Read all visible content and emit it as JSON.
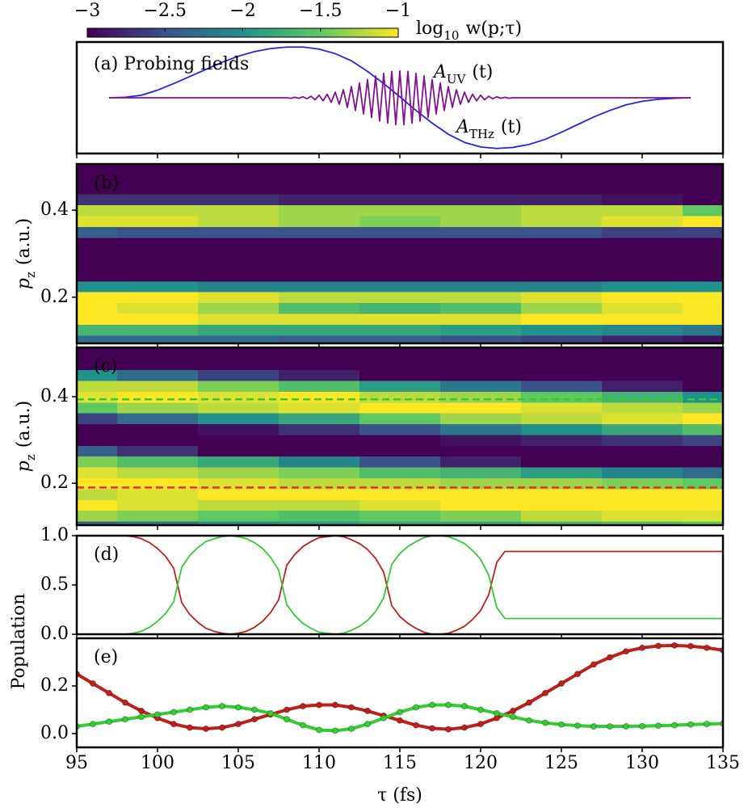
{
  "chart_data": [
    {
      "type": "line",
      "label": "(a) Probing fields",
      "xlim": [
        95,
        135
      ],
      "ylim": [
        -1.1,
        1.1
      ],
      "series": [
        {
          "name": {
            "text": "A",
            "sub": "THz",
            "suffix": "(t)"
          },
          "color": "#2222ee",
          "x": [
            97,
            98,
            99,
            100,
            101,
            102,
            103,
            104,
            105,
            106,
            107,
            108,
            109,
            110,
            111,
            112,
            113,
            114,
            115,
            116,
            117,
            118,
            119,
            120,
            121,
            122,
            123,
            124,
            125,
            126,
            127,
            128,
            129,
            130,
            131,
            132,
            133
          ],
          "values": [
            0,
            0.01,
            0.05,
            0.15,
            0.28,
            0.42,
            0.56,
            0.7,
            0.82,
            0.91,
            0.97,
            1,
            1,
            0.96,
            0.87,
            0.73,
            0.52,
            0.28,
            0.02,
            -0.25,
            -0.5,
            -0.72,
            -0.88,
            -0.97,
            -1,
            -0.98,
            -0.92,
            -0.82,
            -0.68,
            -0.53,
            -0.38,
            -0.25,
            -0.14,
            -0.07,
            -0.03,
            -0.01,
            0
          ]
        },
        {
          "name": {
            "text": "A",
            "sub": "UV",
            "suffix": "(t)"
          },
          "color": "#80128f",
          "x": [
            97,
            108,
            108.25,
            108.5,
            108.75,
            109,
            109.25,
            109.5,
            109.75,
            110,
            110.25,
            110.5,
            110.75,
            111,
            111.25,
            111.5,
            111.75,
            112,
            112.25,
            112.5,
            112.75,
            113,
            113.25,
            113.5,
            113.75,
            114,
            114.25,
            114.5,
            114.75,
            115,
            115.25,
            115.5,
            115.75,
            116,
            116.25,
            116.5,
            116.75,
            117,
            117.25,
            117.5,
            117.75,
            118,
            118.25,
            118.5,
            118.75,
            119,
            119.25,
            119.5,
            119.75,
            120,
            120.25,
            120.5,
            120.75,
            121,
            121.25,
            121.5,
            121.75,
            122,
            133
          ],
          "values": [
            0,
            0,
            -0.01,
            0.01,
            -0.01,
            0.02,
            -0.02,
            0.03,
            -0.04,
            0.05,
            -0.06,
            0.07,
            -0.09,
            0.11,
            -0.13,
            0.16,
            -0.19,
            0.22,
            -0.25,
            0.29,
            -0.32,
            0.36,
            -0.39,
            0.43,
            -0.46,
            0.48,
            -0.5,
            0.52,
            -0.53,
            0.53,
            -0.53,
            0.52,
            -0.5,
            0.48,
            -0.46,
            0.43,
            -0.39,
            0.36,
            -0.32,
            0.29,
            -0.25,
            0.22,
            -0.19,
            0.16,
            -0.13,
            0.11,
            -0.09,
            0.07,
            -0.06,
            0.05,
            -0.04,
            0.03,
            -0.02,
            0.02,
            -0.01,
            0.01,
            -0.01,
            0,
            0
          ]
        }
      ]
    },
    {
      "type": "heatmap",
      "label": "(b)",
      "ylabel": {
        "text": "p",
        "sub": "z",
        "suffix": "(a.u.)"
      },
      "xlim": [
        95,
        135
      ],
      "ylim": [
        0.094,
        0.506
      ],
      "yticks": [
        0.2,
        0.4
      ],
      "colorbar": {
        "label": {
          "text": "log",
          "sub": "10",
          "suffix": "w(p;τ)"
        },
        "clim": [
          -3,
          -1
        ],
        "ticks": [
          {
            "value": -3,
            "label": "−3"
          },
          {
            "value": -2.5,
            "label": "−2.5"
          },
          {
            "value": -2,
            "label": "−2"
          },
          {
            "value": -1.5,
            "label": "−1.5"
          },
          {
            "value": -1,
            "label": "−1"
          }
        ]
      },
      "x": [
        95,
        100,
        105,
        110,
        115,
        120,
        125,
        130,
        135
      ],
      "y": [
        0.1,
        0.125,
        0.15,
        0.175,
        0.2,
        0.225,
        0.25,
        0.275,
        0.3,
        0.325,
        0.35,
        0.375,
        0.4,
        0.425,
        0.45,
        0.475,
        0.5
      ],
      "z": [
        [
          -2.3,
          -2.3,
          -2.3,
          -2.4,
          -2.4,
          -2.5,
          -2.6,
          -2.8,
          -2.9
        ],
        [
          -1.7,
          -1.7,
          -1.8,
          -1.8,
          -1.8,
          -1.9,
          -2,
          -2.1,
          -2.2
        ],
        [
          -1,
          -1,
          -1.1,
          -1.1,
          -1.1,
          -1.1,
          -1,
          -1,
          -1
        ],
        [
          -1,
          -1.1,
          -1.3,
          -1.6,
          -1.7,
          -1.6,
          -1.3,
          -1.1,
          -1
        ],
        [
          -1,
          -1,
          -1.1,
          -1.2,
          -1.2,
          -1.2,
          -1.1,
          -1,
          -1
        ],
        [
          -2,
          -2,
          -2.1,
          -2.1,
          -2.1,
          -2.1,
          -2.1,
          -2,
          -2
        ],
        [
          -3,
          -3,
          -3,
          -3,
          -3,
          -3,
          -3,
          -3,
          -3
        ],
        [
          -3,
          -3,
          -3,
          -3,
          -3,
          -3,
          -3,
          -3,
          -3
        ],
        [
          -3,
          -3,
          -3,
          -3,
          -3,
          -3,
          -3,
          -3,
          -3
        ],
        [
          -3,
          -3,
          -3,
          -3,
          -3,
          -3,
          -3,
          -3,
          -3
        ],
        [
          -2.4,
          -2.5,
          -2.5,
          -2.5,
          -2.5,
          -2.5,
          -2.5,
          -2.6,
          -2.6
        ],
        [
          -1.1,
          -1.1,
          -1.2,
          -1.3,
          -1.4,
          -1.3,
          -1.2,
          -1.1,
          -1
        ],
        [
          -1.2,
          -1.2,
          -1.2,
          -1.3,
          -1.3,
          -1.3,
          -1.2,
          -1.2,
          -1.5
        ],
        [
          -2.7,
          -2.7,
          -2.7,
          -2.8,
          -2.8,
          -2.8,
          -2.8,
          -2.9,
          -3
        ],
        [
          -3,
          -3,
          -3,
          -3,
          -3,
          -3,
          -3,
          -3,
          -3
        ],
        [
          -3,
          -3,
          -3,
          -3,
          -3,
          -3,
          -3,
          -3,
          -3
        ],
        [
          -3,
          -3,
          -3,
          -3,
          -3,
          -3,
          -3,
          -3,
          -3
        ]
      ]
    },
    {
      "type": "heatmap",
      "label": "(c)",
      "ylabel": {
        "text": "p",
        "sub": "z",
        "suffix": "(a.u.)"
      },
      "xlim": [
        95,
        135
      ],
      "ylim": [
        0.103,
        0.514
      ],
      "yticks": [
        0.2,
        0.4
      ],
      "hlines": [
        {
          "value": 0.394,
          "color": "#33cc33"
        },
        {
          "value": 0.19,
          "color": "#e0302a"
        }
      ],
      "x": [
        95,
        100,
        105,
        110,
        115,
        120,
        125,
        130,
        135
      ],
      "y": [
        0.1,
        0.125,
        0.15,
        0.175,
        0.2,
        0.225,
        0.25,
        0.275,
        0.3,
        0.325,
        0.35,
        0.375,
        0.4,
        0.425,
        0.45,
        0.475,
        0.5
      ],
      "z": [
        [
          -2.4,
          -2.2,
          -2,
          -1.9,
          -1.8,
          -1.8,
          -1.7,
          -1.6,
          -1.5
        ],
        [
          -1.3,
          -1.4,
          -1.5,
          -1.6,
          -1.5,
          -1.4,
          -1.2,
          -1.1,
          -1.1
        ],
        [
          -1,
          -1.1,
          -1.2,
          -1.2,
          -1.1,
          -1,
          -1,
          -1,
          -1
        ],
        [
          -1.2,
          -1.1,
          -1,
          -1,
          -1,
          -1,
          -1,
          -1,
          -1
        ],
        [
          -1,
          -1,
          -1.1,
          -1.2,
          -1.2,
          -1.3,
          -1.3,
          -1.4,
          -1.5
        ],
        [
          -1.1,
          -1.2,
          -1.3,
          -1.4,
          -1.6,
          -1.7,
          -1.9,
          -2.1,
          -2.3
        ],
        [
          -1.4,
          -1.6,
          -1.8,
          -2.1,
          -2.5,
          -2.8,
          -3,
          -3,
          -3
        ],
        [
          -2.4,
          -2.7,
          -3,
          -3,
          -3,
          -3,
          -3,
          -3,
          -3
        ],
        [
          -3,
          -3,
          -3,
          -3,
          -3,
          -2.9,
          -2.8,
          -2.7,
          -2.6
        ],
        [
          -3,
          -3,
          -2.9,
          -2.7,
          -2.5,
          -2.2,
          -2,
          -1.8,
          -1.6
        ],
        [
          -2.6,
          -2.3,
          -2,
          -1.8,
          -1.5,
          -1.3,
          -1.2,
          -1.1,
          -1
        ],
        [
          -1.5,
          -1.3,
          -1.2,
          -1.1,
          -1,
          -1,
          -1.1,
          -1.2,
          -1.3
        ],
        [
          -1.1,
          -1,
          -1.1,
          -1,
          -1.2,
          -1.3,
          -1.5,
          -1.7,
          -2
        ],
        [
          -1.2,
          -1.2,
          -1.4,
          -1.6,
          -1.9,
          -2.2,
          -2.5,
          -2.8,
          -3
        ],
        [
          -2,
          -2.3,
          -2.6,
          -2.8,
          -3,
          -3,
          -3,
          -3,
          -3
        ],
        [
          -3,
          -3,
          -3,
          -3,
          -3,
          -3,
          -3,
          -3,
          -3
        ],
        [
          -3,
          -3,
          -3,
          -3,
          -3,
          -3,
          -3,
          -3,
          -3
        ]
      ]
    },
    {
      "type": "line",
      "label": "(d)",
      "ylabel": "Population",
      "xlim": [
        95,
        135
      ],
      "ylim": [
        0,
        1
      ],
      "yticks": [
        {
          "value": 0,
          "label": "0.0"
        },
        {
          "value": 0.5,
          "label": "0.5"
        },
        {
          "value": 1,
          "label": "1.0"
        }
      ],
      "x": [
        98,
        98.5,
        99,
        99.5,
        100,
        100.5,
        101,
        101.5,
        102,
        102.5,
        103,
        103.5,
        104,
        104.5,
        105,
        105.5,
        106,
        106.5,
        107,
        107.5,
        108,
        108.5,
        109,
        109.5,
        110,
        110.5,
        111,
        111.5,
        112,
        112.5,
        113,
        113.5,
        114,
        114.5,
        115,
        115.5,
        116,
        116.5,
        117,
        117.5,
        118,
        118.5,
        119,
        119.5,
        120,
        120.5,
        121,
        121.5,
        135
      ],
      "series": [
        {
          "color": "#c0201a",
          "values": [
            1,
            0.99,
            0.97,
            0.93,
            0.87,
            0.79,
            0.67,
            0.32,
            0.2,
            0.12,
            0.06,
            0.03,
            0.01,
            0,
            0.01,
            0.03,
            0.07,
            0.13,
            0.22,
            0.35,
            0.7,
            0.81,
            0.89,
            0.94,
            0.98,
            0.99,
            1,
            0.99,
            0.96,
            0.92,
            0.86,
            0.77,
            0.63,
            0.29,
            0.18,
            0.11,
            0.06,
            0.02,
            0,
            0,
            0.01,
            0.04,
            0.08,
            0.15,
            0.24,
            0.4,
            0.73,
            0.84,
            0.84
          ]
        },
        {
          "color": "#33cc33",
          "values": [
            0,
            0.01,
            0.03,
            0.07,
            0.13,
            0.21,
            0.33,
            0.68,
            0.8,
            0.88,
            0.94,
            0.97,
            0.99,
            1,
            0.99,
            0.97,
            0.93,
            0.87,
            0.78,
            0.65,
            0.3,
            0.19,
            0.11,
            0.06,
            0.02,
            0.01,
            0,
            0.01,
            0.04,
            0.08,
            0.14,
            0.23,
            0.37,
            0.71,
            0.82,
            0.89,
            0.94,
            0.98,
            1,
            1,
            0.99,
            0.96,
            0.92,
            0.85,
            0.76,
            0.6,
            0.27,
            0.16,
            0.16
          ]
        }
      ]
    },
    {
      "type": "line",
      "label": "(e)",
      "xlabel": "τ (fs)",
      "xlim": [
        95,
        135
      ],
      "ylim": [
        -0.058,
        0.4
      ],
      "markers": true,
      "xticks": [
        95,
        100,
        105,
        110,
        115,
        120,
        125,
        130,
        135
      ],
      "yticks": [
        {
          "value": 0,
          "label": "0.0"
        },
        0.2
      ],
      "x": [
        95,
        96,
        97,
        98,
        99,
        100,
        101,
        102,
        103,
        104,
        105,
        106,
        107,
        108,
        109,
        110,
        111,
        112,
        113,
        114,
        115,
        116,
        117,
        118,
        119,
        120,
        121,
        122,
        123,
        124,
        125,
        126,
        127,
        128,
        129,
        130,
        131,
        132,
        133,
        134,
        135
      ],
      "series": [
        {
          "color": "#c0201a",
          "values": [
            0.25,
            0.21,
            0.17,
            0.13,
            0.095,
            0.065,
            0.04,
            0.025,
            0.02,
            0.025,
            0.04,
            0.06,
            0.08,
            0.1,
            0.115,
            0.12,
            0.12,
            0.11,
            0.095,
            0.075,
            0.055,
            0.035,
            0.022,
            0.018,
            0.025,
            0.04,
            0.065,
            0.095,
            0.13,
            0.17,
            0.21,
            0.25,
            0.29,
            0.32,
            0.345,
            0.36,
            0.368,
            0.37,
            0.367,
            0.36,
            0.35
          ]
        },
        {
          "color": "#33cc33",
          "values": [
            0.03,
            0.04,
            0.05,
            0.06,
            0.07,
            0.08,
            0.09,
            0.1,
            0.11,
            0.115,
            0.11,
            0.1,
            0.085,
            0.06,
            0.035,
            0.015,
            0.012,
            0.02,
            0.04,
            0.065,
            0.09,
            0.11,
            0.12,
            0.12,
            0.115,
            0.1,
            0.085,
            0.07,
            0.055,
            0.045,
            0.038,
            0.033,
            0.03,
            0.03,
            0.03,
            0.031,
            0.033,
            0.035,
            0.038,
            0.04,
            0.042
          ]
        }
      ]
    }
  ]
}
